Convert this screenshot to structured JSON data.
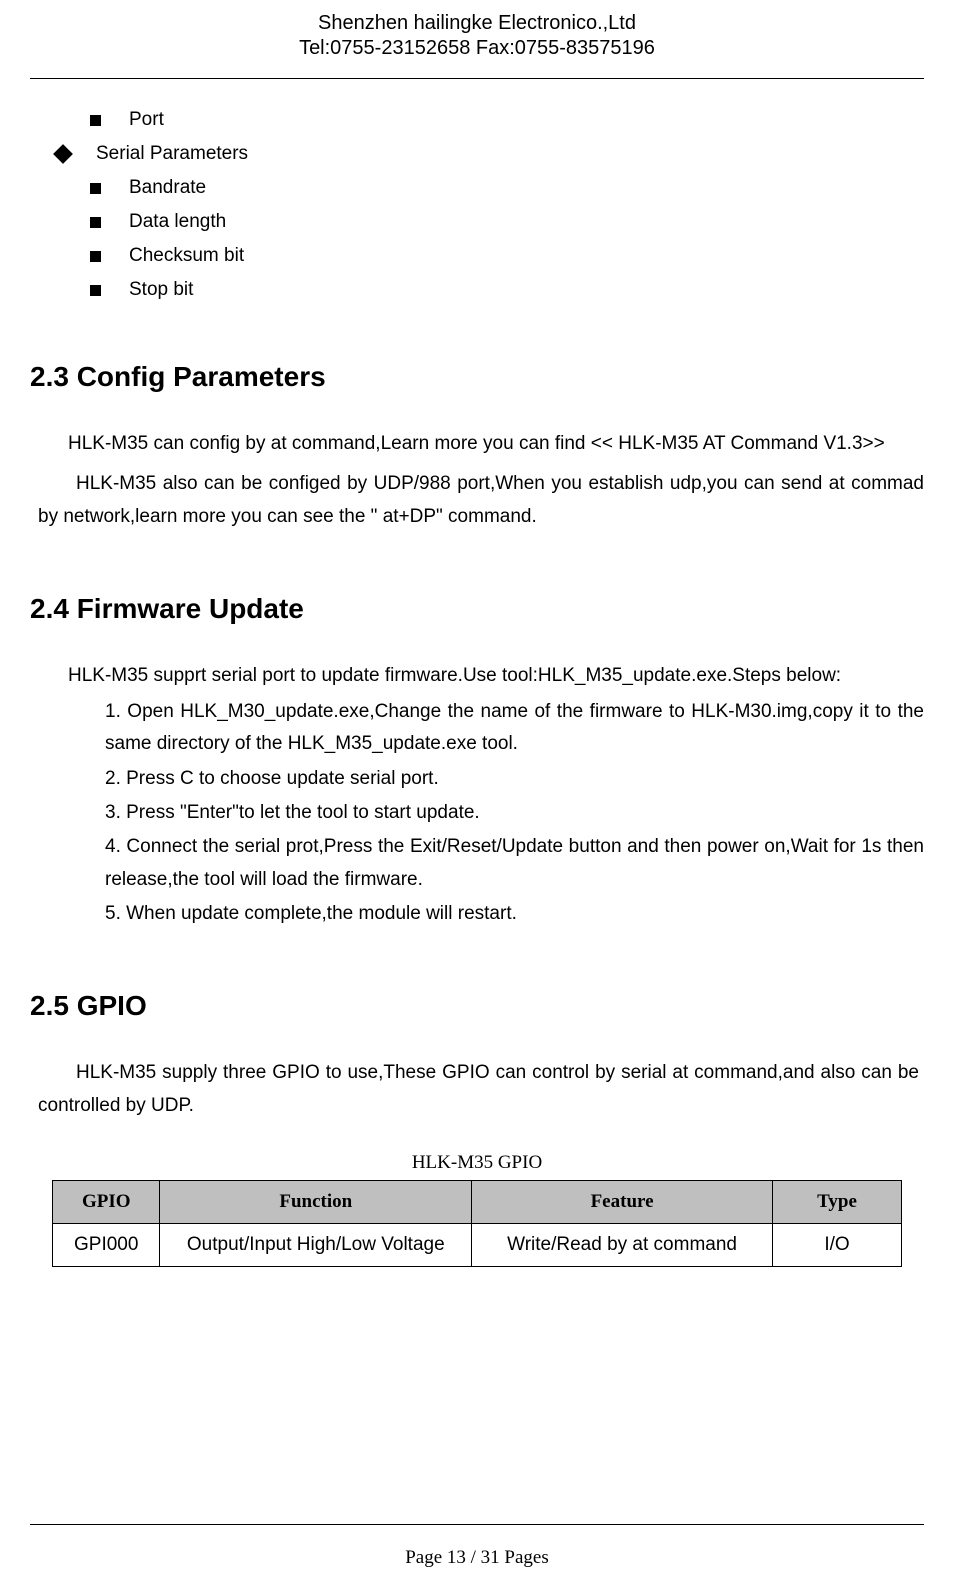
{
  "header": {
    "company": "Shenzhen hailingke Electronico.,Ltd",
    "contact": "Tel:0755-23152658 Fax:0755-83575196"
  },
  "bullets_top": {
    "port": "Port",
    "serial_params": "Serial Parameters",
    "bandrate": "Bandrate",
    "data_length": "Data length",
    "checksum_bit": "Checksum bit",
    "stop_bit": "Stop bit"
  },
  "section_23": {
    "heading": "2.3 Config Parameters",
    "p1": "HLK-M35 can config by at command,Learn more you can find << HLK-M35 AT Command V1.3>>",
    "p2": "HLK-M35 also can be configed by UDP/988 port,When you establish udp,you can send at commad by network,learn more you can see the \" at+DP\" command."
  },
  "section_24": {
    "heading": "2.4 Firmware Update",
    "intro": "HLK-M35 supprt serial port to update firmware.Use tool:HLK_M35_update.exe.Steps below:",
    "step1": "1. Open HLK_M30_update.exe,Change the name of the firmware to HLK-M30.img,copy it to the same directory of the HLK_M35_update.exe tool.",
    "step2": "2. Press C to choose update serial port.",
    "step3": "3. Press \"Enter\"to let the tool to start update.",
    "step4": "4. Connect the serial prot,Press the Exit/Reset/Update button and then power on,Wait for 1s then release,the tool will load the firmware.",
    "step5": "5. When update complete,the module will restart."
  },
  "section_25": {
    "heading": "2.5 GPIO",
    "p1": "HLK-M35 supply three GPIO to use,These GPIO can control by serial at command,and also can be controlled by UDP."
  },
  "table": {
    "caption": "HLK-M35 GPIO",
    "headers": {
      "gpio": "GPIO",
      "function": "Function",
      "feature": "Feature",
      "type": "Type"
    },
    "rows": [
      {
        "gpio": "GPI000",
        "function": "Output/Input High/Low Voltage",
        "feature": "Write/Read by at command",
        "type": "I/O"
      }
    ],
    "header_bg": "#bfbfbf",
    "border_color": "#000000"
  },
  "footer": {
    "text": "Page 13 / 31 Pages"
  }
}
